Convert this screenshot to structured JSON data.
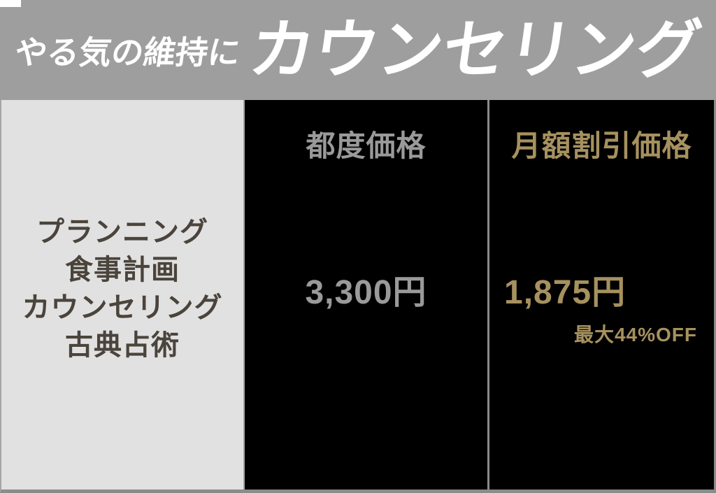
{
  "header": {
    "subtitle": "やる気の維持に",
    "title": "カウンセリング"
  },
  "pricing_table": {
    "services": {
      "items": [
        "プランニング",
        "食事計画",
        "カウンセリング",
        "古典占術"
      ]
    },
    "per_session": {
      "header": "都度価格",
      "price": "3,300円"
    },
    "monthly": {
      "header": "月額割引価格",
      "price": "1,875円",
      "discount_note": "最大44%OFF"
    }
  },
  "colors": {
    "header_band_bg": "#9f9e9e",
    "header_text": "#ffffff",
    "services_bg": "#e2e1e1",
    "services_text": "#4a443c",
    "gray_text": "#9a9a9a",
    "gold_text": "#a6915f",
    "column_bg": "#000000",
    "border": "#8b8b8b",
    "border_light": "#a5a5a5"
  },
  "chart_data": {
    "type": "table",
    "title": "やる気の維持に カウンセリング",
    "row_labels": [
      "プランニング",
      "食事計画",
      "カウンセリング",
      "古典占術"
    ],
    "columns": [
      "都度価格",
      "月額割引価格"
    ],
    "rows": [
      [
        "3,300円",
        "1,875円"
      ]
    ],
    "annotations": [
      "最大44%OFF"
    ],
    "legend_position": "none",
    "grid": false
  }
}
